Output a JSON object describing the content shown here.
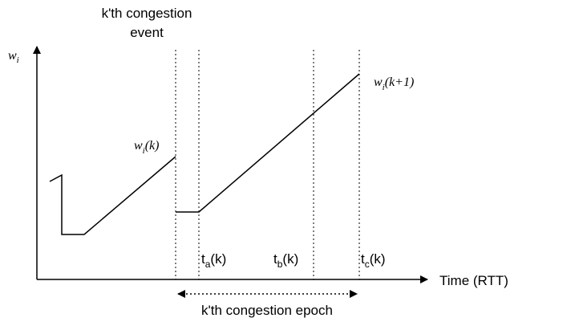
{
  "diagram": {
    "event_label_line1": "k'th congestion",
    "event_label_line2": "event",
    "y_axis_symbol": "w",
    "y_axis_subscript": "i",
    "x_axis_label": "Time (RTT)",
    "window_k": {
      "base": "w",
      "sub": "i",
      "rest": "(k)"
    },
    "window_k1": {
      "base": "w",
      "sub": "i",
      "rest": "(k+1)"
    },
    "ta": {
      "base": "t",
      "sub": "a",
      "rest": "(k)"
    },
    "tb": {
      "base": "t",
      "sub": "b",
      "rest": "(k)"
    },
    "tc": {
      "base": "t",
      "sub": "c",
      "rest": "(k)"
    },
    "epoch_label": "k'th congestion epoch"
  }
}
